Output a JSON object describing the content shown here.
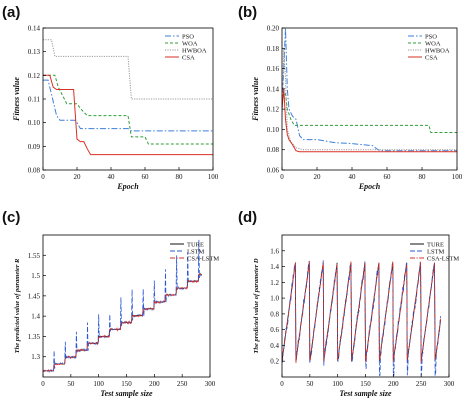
{
  "panels": [
    {
      "id": "a",
      "panel_label": "(a)",
      "chart_data": {
        "type": "line",
        "xlabel": "Epoch",
        "ylabel": "Fitness value",
        "xlim": [
          0,
          100
        ],
        "ylim": [
          0.08,
          0.14
        ],
        "xticks": [
          0,
          20,
          40,
          60,
          80,
          100
        ],
        "yticks": [
          0.08,
          0.09,
          0.1,
          0.11,
          0.12,
          0.13,
          0.14
        ],
        "xtick_labels": [
          "0",
          "20",
          "40",
          "60",
          "80",
          "100"
        ],
        "ytick_labels": [
          "0.08",
          "0.09",
          "0.10",
          "0.11",
          "0.12",
          "0.13",
          "0.14"
        ],
        "legend_position": "top-right",
        "series": [
          {
            "name": "PSO",
            "color": "#3d7fd9",
            "dash": "6,2,1.5,2",
            "x": [
              0,
              3,
              5,
              8,
              10,
              14,
              19,
              20,
              22,
              50,
              52,
              100
            ],
            "y": [
              0.118,
              0.118,
              0.112,
              0.103,
              0.101,
              0.101,
              0.101,
              0.1,
              0.0975,
              0.0975,
              0.0965,
              0.0965
            ]
          },
          {
            "name": "WOA",
            "color": "#2f9e3a",
            "dash": "3,2",
            "x": [
              0,
              7,
              9,
              14,
              20,
              22,
              26,
              50,
              52,
              60,
              62,
              100
            ],
            "y": [
              0.12,
              0.12,
              0.115,
              0.108,
              0.108,
              0.106,
              0.103,
              0.103,
              0.094,
              0.094,
              0.091,
              0.091
            ]
          },
          {
            "name": "HWBOA",
            "color": "#999999",
            "dash": "1.2,1.2",
            "x": [
              0,
              5,
              7,
              50,
              52,
              100
            ],
            "y": [
              0.135,
              0.135,
              0.128,
              0.128,
              0.11,
              0.11
            ]
          },
          {
            "name": "CSA",
            "color": "#d93025",
            "dash": "",
            "x": [
              0,
              4,
              6,
              8,
              10,
              18,
              20,
              22,
              24,
              26,
              28,
              100
            ],
            "y": [
              0.12,
              0.12,
              0.115,
              0.114,
              0.114,
              0.114,
              0.093,
              0.092,
              0.092,
              0.089,
              0.0865,
              0.0865
            ]
          }
        ]
      }
    },
    {
      "id": "b",
      "panel_label": "(b)",
      "chart_data": {
        "type": "line",
        "xlabel": "Epoch",
        "ylabel": "Fitness value",
        "xlim": [
          0,
          100
        ],
        "ylim": [
          0.06,
          0.2
        ],
        "xticks": [
          0,
          20,
          40,
          60,
          80,
          100
        ],
        "yticks": [
          0.06,
          0.08,
          0.1,
          0.12,
          0.14,
          0.16,
          0.18,
          0.2
        ],
        "xtick_labels": [
          "0",
          "20",
          "40",
          "60",
          "80",
          "100"
        ],
        "ytick_labels": [
          "0.06",
          "0.08",
          "0.10",
          "0.12",
          "0.14",
          "0.16",
          "0.18",
          "0.20"
        ],
        "legend_position": "top-right",
        "series": [
          {
            "name": "PSO",
            "color": "#3d7fd9",
            "dash": "6,2,1.5,2",
            "x": [
              0,
              1,
              2,
              3,
              4,
              6,
              8,
              10,
              12,
              20,
              30,
              40,
              52,
              54,
              56,
              100
            ],
            "y": [
              0.125,
              0.16,
              0.2,
              0.14,
              0.12,
              0.113,
              0.11,
              0.094,
              0.09,
              0.09,
              0.087,
              0.086,
              0.084,
              0.081,
              0.079,
              0.079
            ]
          },
          {
            "name": "WOA",
            "color": "#2f9e3a",
            "dash": "3,2",
            "x": [
              0,
              2,
              3,
              5,
              7,
              84,
              85,
              100
            ],
            "y": [
              0.13,
              0.135,
              0.12,
              0.11,
              0.104,
              0.104,
              0.097,
              0.097
            ]
          },
          {
            "name": "HWBOA",
            "color": "#999999",
            "dash": "1.2,1.2",
            "x": [
              0,
              1,
              2,
              3,
              5,
              8,
              12,
              100
            ],
            "y": [
              0.11,
              0.18,
              0.15,
              0.1,
              0.088,
              0.082,
              0.08,
              0.08
            ]
          },
          {
            "name": "CSA",
            "color": "#d93025",
            "dash": "",
            "x": [
              0,
              1,
              2,
              3,
              4,
              6,
              8,
              10,
              100
            ],
            "y": [
              0.12,
              0.14,
              0.11,
              0.095,
              0.09,
              0.085,
              0.079,
              0.078,
              0.078
            ]
          }
        ]
      }
    },
    {
      "id": "c",
      "panel_label": "(c)",
      "chart_data": {
        "type": "line",
        "xlabel": "Test sample size",
        "ylabel": "The predicted value of parameter R",
        "xlim": [
          0,
          300
        ],
        "ylim": [
          1.25,
          1.6
        ],
        "xticks": [
          0,
          50,
          100,
          150,
          200,
          250,
          300
        ],
        "yticks": [
          1.3,
          1.35,
          1.4,
          1.45,
          1.5,
          1.55
        ],
        "xtick_labels": [
          "0",
          "50",
          "100",
          "150",
          "200",
          "250",
          "300"
        ],
        "ytick_labels": [
          "1.3",
          "1.35",
          "1.4",
          "1.45",
          "1.5",
          "1.55"
        ],
        "legend_position": "top-left",
        "generator": {
          "kind": "staircase",
          "start": 0,
          "end": 285,
          "step_len": 20,
          "y0": 1.265,
          "y_step": 0.017,
          "lstm_spikes": {
            "amplitude": [
              0.03,
              0.1
            ],
            "every_step": true
          }
        },
        "series": [
          {
            "name": "TURE",
            "color": "#111111",
            "dash": ""
          },
          {
            "name": "LSTM",
            "color": "#2b57d6",
            "dash": "5,2"
          },
          {
            "name": "CSA-LSTM",
            "color": "#d93025",
            "dash": "5,1.5,1.2,1.5"
          }
        ]
      }
    },
    {
      "id": "d",
      "panel_label": "(d)",
      "chart_data": {
        "type": "line",
        "xlabel": "Test sample size",
        "ylabel": "The predicted value of parameter D",
        "xlim": [
          0,
          300
        ],
        "ylim": [
          0,
          1.8
        ],
        "xticks": [
          0,
          50,
          100,
          150,
          200,
          250,
          300
        ],
        "yticks": [
          0.2,
          0.4,
          0.6,
          0.8,
          1.0,
          1.2,
          1.4,
          1.6
        ],
        "xtick_labels": [
          "0",
          "50",
          "100",
          "150",
          "200",
          "250",
          "300"
        ],
        "ytick_labels": [
          "0.2",
          "0.4",
          "0.6",
          "0.8",
          "1.0",
          "1.2",
          "1.4",
          "1.6"
        ],
        "legend_position": "top-right",
        "generator": {
          "kind": "sawtooth",
          "start": 0,
          "end": 285,
          "period": 25,
          "y_low": 0.2,
          "y_high": 1.5
        },
        "series": [
          {
            "name": "TURE",
            "color": "#111111",
            "dash": ""
          },
          {
            "name": "LSTM",
            "color": "#2b57d6",
            "dash": "5,2"
          },
          {
            "name": "CSA-LSTM",
            "color": "#d93025",
            "dash": "5,1.5,1.2,1.5"
          }
        ]
      }
    }
  ]
}
